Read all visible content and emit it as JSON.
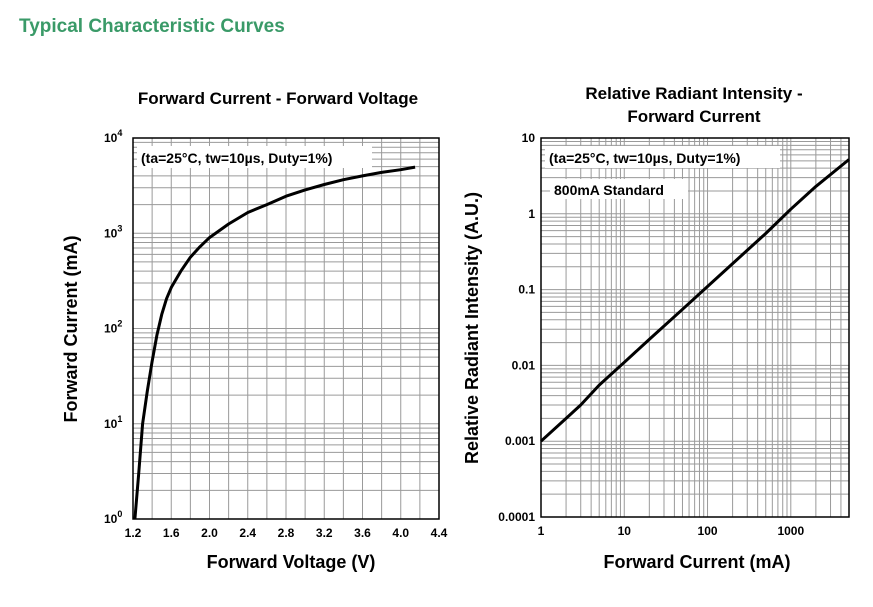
{
  "page": {
    "section_title": "Typical Characteristic Curves"
  },
  "colors": {
    "title": "#3a9a68",
    "grid": "#9a9a9a",
    "frame": "#000000",
    "curve": "#000000"
  },
  "chart_data": [
    {
      "type": "line",
      "title": "Forward Current - Forward Voltage",
      "annotation": "(ta=25°C, tw=10µs, Duty=1%)",
      "xlabel": "Forward Voltage (V)",
      "ylabel": "Forward Current (mA)",
      "xscale": "linear",
      "yscale": "log",
      "xlim": [
        1.2,
        4.4
      ],
      "ylim": [
        1,
        10000
      ],
      "xticks": [
        "1.2",
        "1.6",
        "2.0",
        "2.4",
        "2.8",
        "3.2",
        "3.6",
        "4.0",
        "4.4"
      ],
      "yticks": [
        {
          "value": 1,
          "base": "10",
          "exp": "0"
        },
        {
          "value": 10,
          "base": "10",
          "exp": "1"
        },
        {
          "value": 100,
          "base": "10",
          "exp": "2"
        },
        {
          "value": 1000,
          "base": "10",
          "exp": "3"
        },
        {
          "value": 10000,
          "base": "10",
          "exp": "4"
        }
      ],
      "grid": true,
      "series": [
        {
          "x": [
            1.22,
            1.26,
            1.3,
            1.35,
            1.4,
            1.45,
            1.5,
            1.55,
            1.6,
            1.7,
            1.8,
            1.9,
            2.0,
            2.2,
            2.4,
            2.6,
            2.8,
            3.0,
            3.2,
            3.4,
            3.6,
            3.8,
            4.0,
            4.15
          ],
          "y": [
            1,
            3,
            10,
            22,
            45,
            85,
            140,
            205,
            270,
            400,
            560,
            720,
            900,
            1250,
            1650,
            2000,
            2450,
            2850,
            3250,
            3650,
            4000,
            4350,
            4650,
            4950
          ]
        }
      ]
    },
    {
      "type": "line",
      "title": "Relative Radiant Intensity -\nForward Current",
      "title_lines": [
        "Relative Radiant Intensity -",
        "Forward Current"
      ],
      "annotation": "(ta=25°C, tw=10µs, Duty=1%)",
      "annotation2": "800mA Standard",
      "xlabel": "Forward Current (mA)",
      "ylabel": "Relative Radiant Intensity (A.U.)",
      "xscale": "log",
      "yscale": "log",
      "xlim": [
        1,
        5000
      ],
      "ylim": [
        0.0001,
        10
      ],
      "xticks": [
        {
          "value": 1,
          "label": "1"
        },
        {
          "value": 10,
          "label": "10"
        },
        {
          "value": 100,
          "label": "100"
        },
        {
          "value": 1000,
          "label": "1000"
        }
      ],
      "yticks": [
        {
          "value": 10,
          "label": "10"
        },
        {
          "value": 1,
          "label": "1"
        },
        {
          "value": 0.1,
          "label": "0.1"
        },
        {
          "value": 0.01,
          "label": "0.01"
        },
        {
          "value": 0.001,
          "label": "0.001"
        },
        {
          "value": 0.0001,
          "label": "0.0001"
        }
      ],
      "grid": true,
      "series": [
        {
          "x": [
            1,
            2,
            3,
            5,
            10,
            20,
            50,
            100,
            200,
            500,
            1000,
            2000,
            5000
          ],
          "y": [
            0.001,
            0.002,
            0.003,
            0.0055,
            0.011,
            0.022,
            0.055,
            0.11,
            0.22,
            0.55,
            1.15,
            2.3,
            5.2
          ]
        }
      ]
    }
  ]
}
